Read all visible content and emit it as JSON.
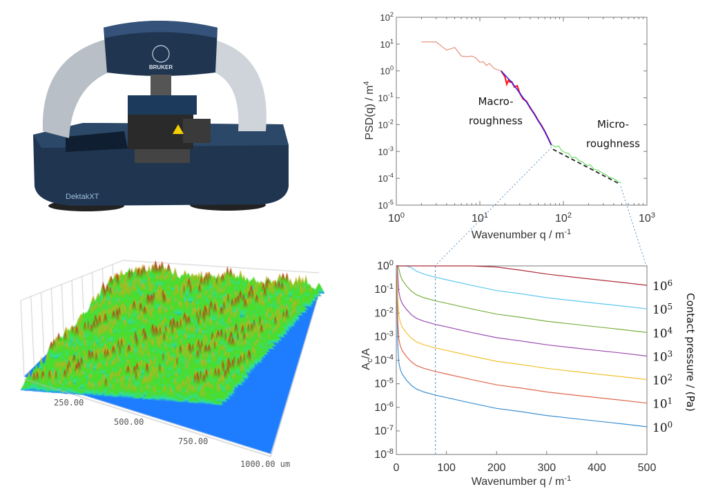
{
  "instrument": {
    "brand": "BRUKER",
    "model": "DektakXT",
    "colors": {
      "body": "#1f3550",
      "arch": "#b9bfc6"
    }
  },
  "surface_map": {
    "axis_labels": [
      "250.00",
      "500.00",
      "750.00",
      "1000.00 um"
    ],
    "colormap": [
      "#0a1fd0",
      "#1e7dff",
      "#2ee0a0",
      "#4cdc2a",
      "#f0a020",
      "#e01010"
    ]
  },
  "connector_color": "#5b8fc0",
  "chart_data": [
    {
      "type": "line",
      "title": "",
      "xscale": "log",
      "yscale": "log",
      "xlim": [
        1,
        1000
      ],
      "ylim": [
        1e-05,
        100
      ],
      "x_ticks": [
        {
          "base": "10",
          "exp": "0",
          "v": 1
        },
        {
          "base": "10",
          "exp": "1",
          "v": 10
        },
        {
          "base": "10",
          "exp": "2",
          "v": 100
        },
        {
          "base": "10",
          "exp": "3",
          "v": 1000
        }
      ],
      "y_ticks": [
        {
          "base": "10",
          "exp": "2",
          "v": 100
        },
        {
          "base": "10",
          "exp": "1",
          "v": 10
        },
        {
          "base": "10",
          "exp": "0",
          "v": 1
        },
        {
          "base": "10",
          "exp": "-1",
          "v": 0.1
        },
        {
          "base": "10",
          "exp": "-2",
          "v": 0.01
        },
        {
          "base": "10",
          "exp": "-3",
          "v": 0.001
        },
        {
          "base": "10",
          "exp": "-4",
          "v": 0.0001
        },
        {
          "base": "10",
          "exp": "-5",
          "v": 1e-05
        }
      ],
      "xlabel": {
        "text": "Wavenumber q / m",
        "sup": "-1"
      },
      "ylabel": {
        "text": "PSD(q) / m",
        "sup": "4"
      },
      "annotations": [
        {
          "lines": [
            "Macro-",
            "roughness"
          ]
        },
        {
          "lines": [
            "Micro-",
            "roughness"
          ]
        }
      ],
      "series": [
        {
          "name": "psd-full",
          "color": "#e07a60",
          "width": 1,
          "dash": "",
          "x": [
            2,
            3,
            4,
            5,
            6,
            7,
            8,
            9,
            10,
            11,
            12,
            13,
            15,
            18
          ],
          "y": [
            12,
            12,
            6,
            7.5,
            3.6,
            3.4,
            3.6,
            3,
            2.1,
            2.2,
            1.6,
            1.9,
            1.2,
            1.0
          ]
        },
        {
          "name": "macro-roughness-data",
          "color": "#ff1a1a",
          "width": 2.2,
          "dash": "",
          "x": [
            18,
            20,
            21,
            22,
            23,
            24,
            26,
            28,
            30,
            33,
            36,
            40,
            45,
            50,
            55,
            60,
            66,
            72
          ],
          "y": [
            1.0,
            0.6,
            0.32,
            0.45,
            0.38,
            0.4,
            0.25,
            0.28,
            0.15,
            0.09,
            0.075,
            0.042,
            0.025,
            0.014,
            0.009,
            0.0055,
            0.003,
            0.0017
          ]
        },
        {
          "name": "macro-roughness-fit",
          "color": "#1a1aff",
          "width": 1.4,
          "dash": "",
          "x": [
            18,
            24,
            30,
            40,
            50,
            60,
            72
          ],
          "y": [
            1.0,
            0.38,
            0.15,
            0.045,
            0.014,
            0.0055,
            0.0017
          ]
        },
        {
          "name": "micro-roughness-data",
          "color": "#66e066",
          "width": 1.2,
          "dash": "",
          "x": [
            72,
            80,
            88,
            95,
            105,
            115,
            125,
            140,
            155,
            170,
            190,
            210,
            230,
            260,
            290,
            320,
            350,
            390,
            430,
            470,
            490
          ],
          "y": [
            0.0018,
            0.0015,
            0.0016,
            0.0011,
            0.0009,
            0.00085,
            0.0006,
            0.0006,
            0.00045,
            0.0004,
            0.0003,
            0.00032,
            0.00022,
            0.0002,
            0.00016,
            0.00014,
            0.00011,
            0.0001,
            8.5e-05,
            7e-05,
            7.2e-05
          ]
        },
        {
          "name": "micro-roughness-fit",
          "color": "#222222",
          "width": 1.8,
          "dash": "6,4",
          "x": [
            75,
            480
          ],
          "y": [
            0.0012,
            6e-05
          ]
        }
      ]
    },
    {
      "type": "line",
      "xscale": "linear",
      "yscale": "log",
      "xlim": [
        0,
        500
      ],
      "ylim": [
        1e-08,
        1
      ],
      "x_ticks": [
        0,
        100,
        200,
        300,
        400,
        500
      ],
      "y_ticks": [
        {
          "base": "10",
          "exp": "0",
          "v": 1
        },
        {
          "base": "10",
          "exp": "-1",
          "v": 0.1
        },
        {
          "base": "10",
          "exp": "-2",
          "v": 0.01
        },
        {
          "base": "10",
          "exp": "-3",
          "v": 0.001
        },
        {
          "base": "10",
          "exp": "-4",
          "v": 0.0001
        },
        {
          "base": "10",
          "exp": "-5",
          "v": 1e-05
        },
        {
          "base": "10",
          "exp": "-6",
          "v": 1e-06
        },
        {
          "base": "10",
          "exp": "-7",
          "v": 1e-07
        },
        {
          "base": "10",
          "exp": "-8",
          "v": 1e-08
        }
      ],
      "xlabel": {
        "text": "Wavenumber q / m",
        "sup": "-1"
      },
      "ylabel": {
        "text": "A",
        "sub": "c",
        "rest": "/A"
      },
      "y2label": "Contact pressure /  (Pa)",
      "marker_q": 78,
      "base_curve": {
        "q": [
          0,
          1,
          2,
          3,
          5,
          8,
          12,
          20,
          30,
          40,
          55,
          78,
          100,
          150,
          200,
          250,
          300,
          350,
          400,
          450,
          500
        ],
        "a": [
          1,
          0.08,
          0.004,
          0.0004,
          8e-05,
          4e-05,
          2.5e-05,
          1.45e-05,
          8.5e-06,
          6e-06,
          4.5e-06,
          3.3e-06,
          2.6e-06,
          1.5e-06,
          9e-07,
          6.5e-07,
          4.5e-07,
          3.4e-07,
          2.6e-07,
          2e-07,
          1.5e-07
        ]
      },
      "series": [
        {
          "name": "1 Pa",
          "pressure": 1,
          "tick": {
            "base": "10",
            "exp": "0"
          },
          "color": "#3a8fd0"
        },
        {
          "name": "10 Pa",
          "pressure": 10,
          "tick": {
            "base": "10",
            "exp": "1"
          },
          "color": "#e0664a"
        },
        {
          "name": "100 Pa",
          "pressure": 100,
          "tick": {
            "base": "10",
            "exp": "2"
          },
          "color": "#f2c230"
        },
        {
          "name": "1000 Pa",
          "pressure": 1000,
          "tick": {
            "base": "10",
            "exp": "3"
          },
          "color": "#9a4cb0"
        },
        {
          "name": "10^4 Pa",
          "pressure": 10000,
          "tick": {
            "base": "10",
            "exp": "4"
          },
          "color": "#7ab040"
        },
        {
          "name": "10^5 Pa",
          "pressure": 100000,
          "tick": {
            "base": "10",
            "exp": "5"
          },
          "color": "#5cc8f0"
        },
        {
          "name": "10^6 Pa",
          "pressure": 1000000,
          "tick": {
            "base": "10",
            "exp": "6"
          },
          "color": "#b02a3a"
        }
      ]
    }
  ]
}
